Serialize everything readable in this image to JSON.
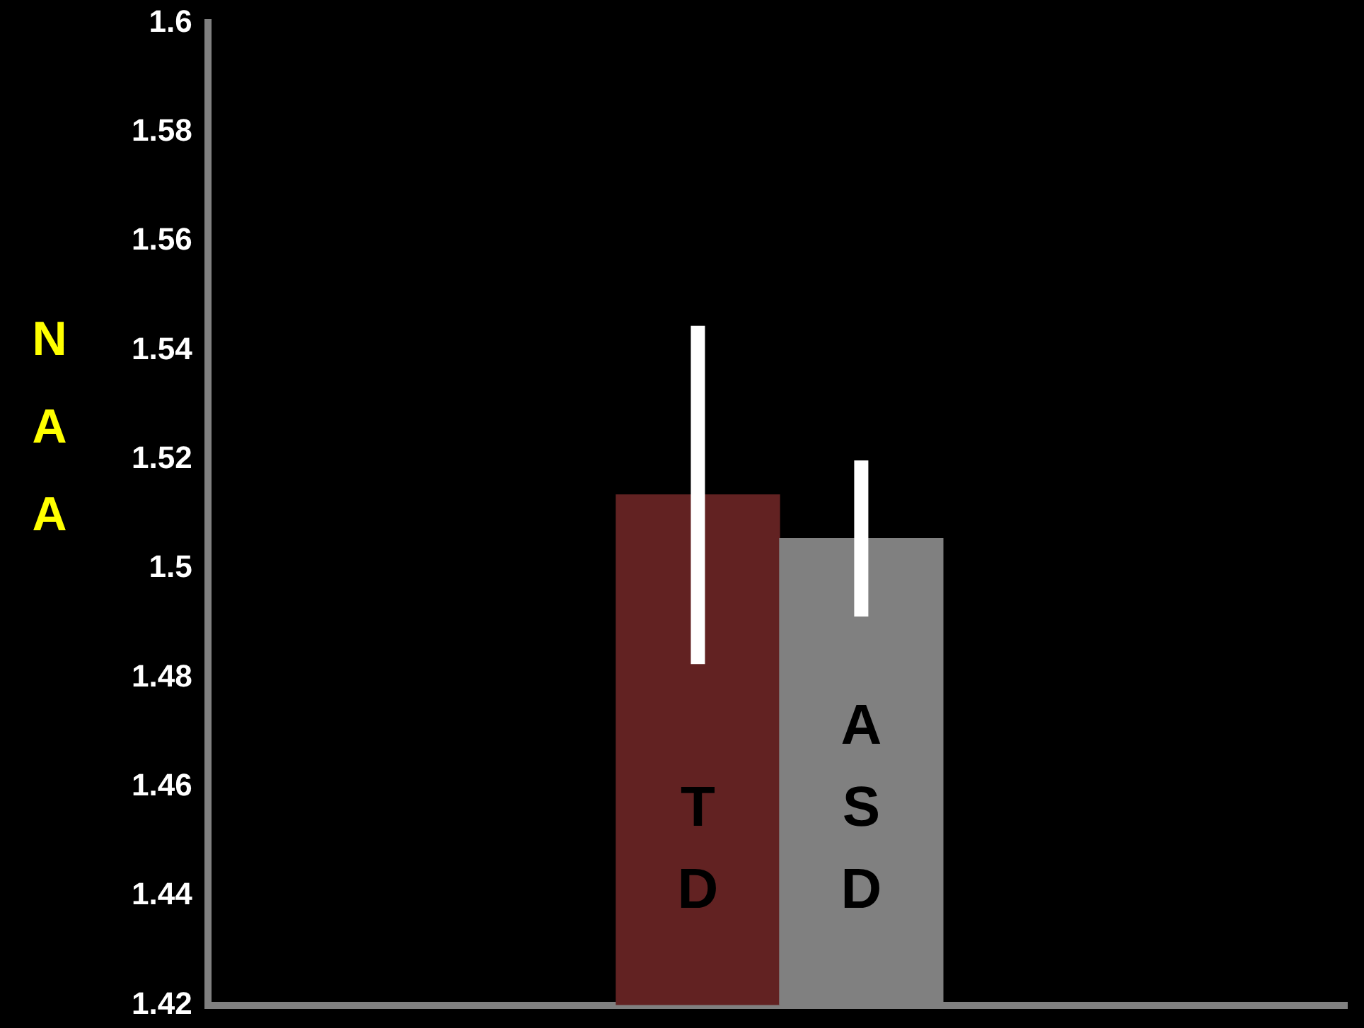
{
  "chart_data": {
    "type": "bar",
    "ylabel": "NAA",
    "categories": [
      "TD",
      "ASD"
    ],
    "values": [
      1.5135,
      1.5055
    ],
    "colors": [
      "#622222",
      "#808080"
    ],
    "errors": [
      0.031,
      0.0143
    ],
    "ylim": [
      1.42,
      1.6
    ],
    "yticks": [
      1.42,
      1.44,
      1.46,
      1.48,
      1.5,
      1.52,
      1.54,
      1.56,
      1.58,
      1.6
    ],
    "grid": false,
    "legend": false,
    "tick_labels": "y"
  }
}
